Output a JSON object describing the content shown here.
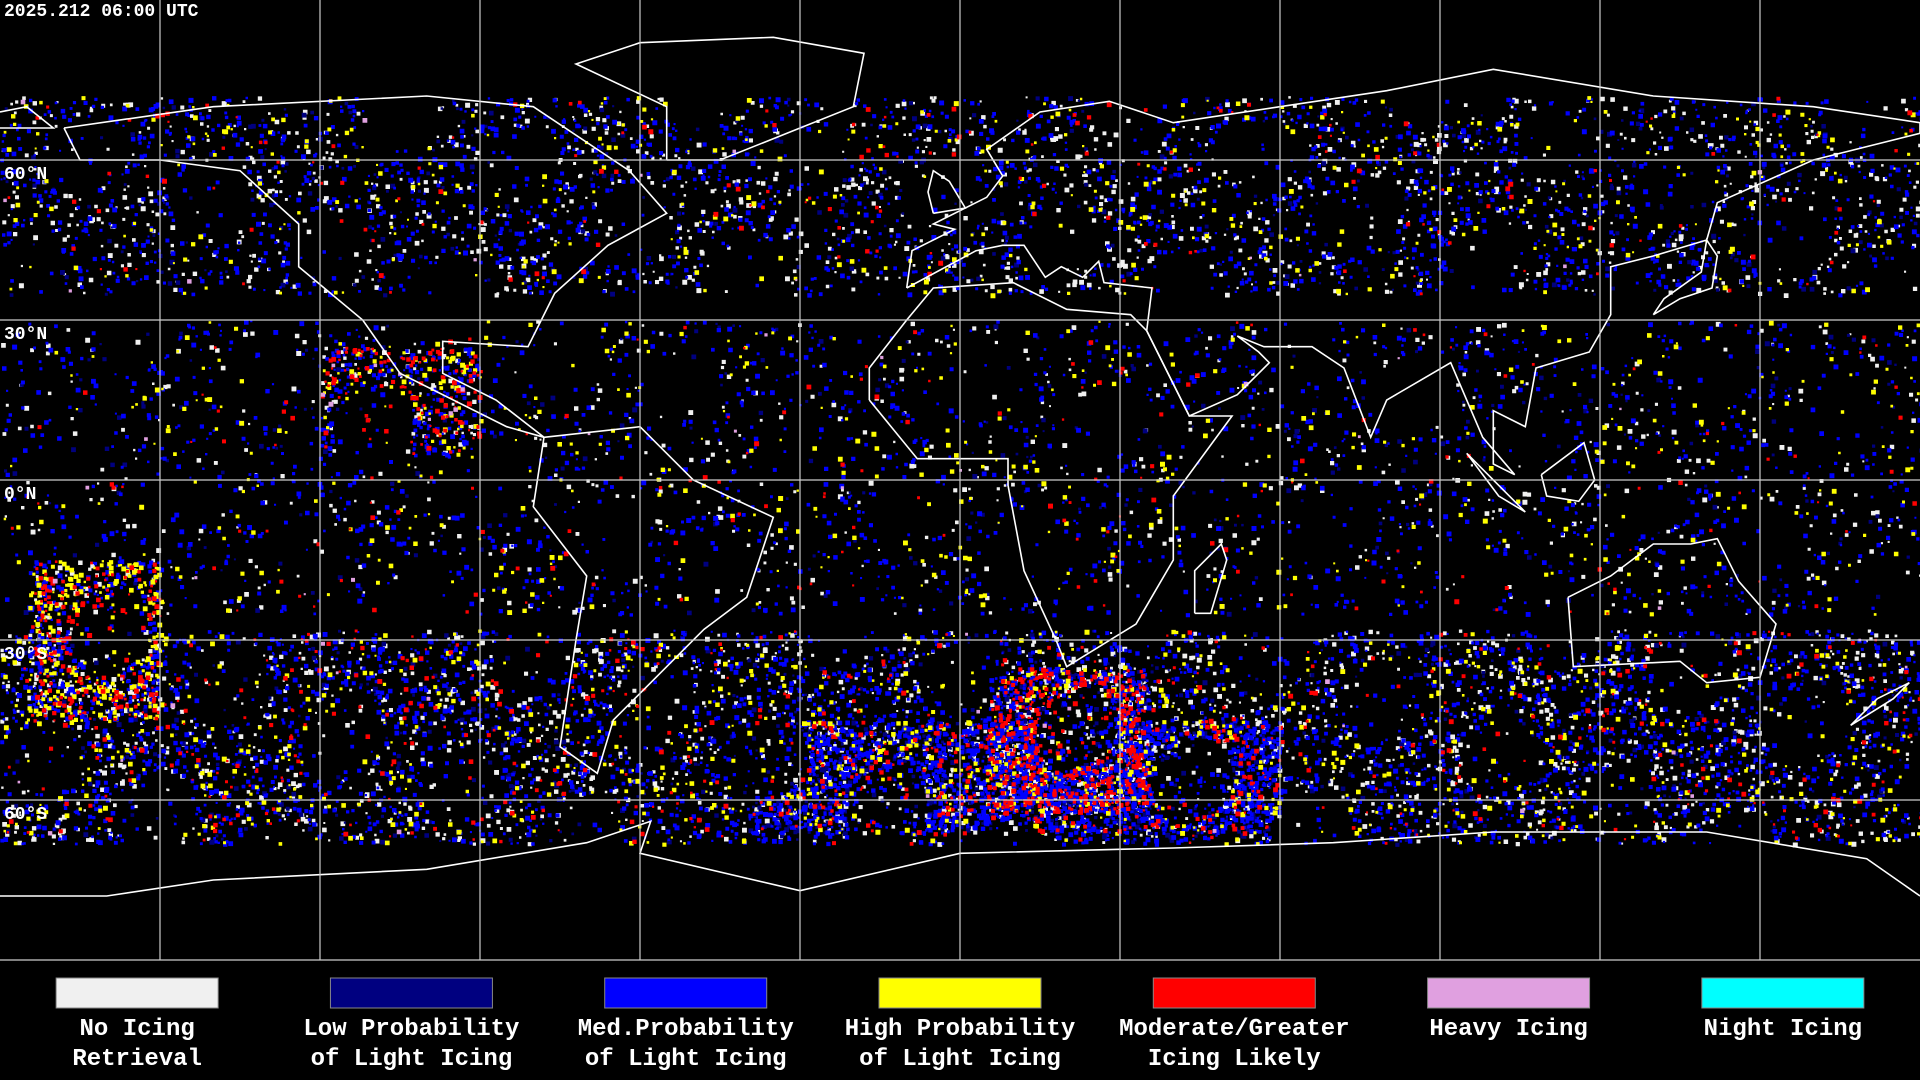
{
  "header": {
    "timestamp": "2025.212 06:00 UTC"
  },
  "map": {
    "latitude_labels": [
      "60°N",
      "30°N",
      "0°N",
      "30°S",
      "60°S"
    ]
  },
  "legend": {
    "items": [
      {
        "label": [
          "No Icing",
          "Retrieval"
        ],
        "color": "#f0f0f0"
      },
      {
        "label": [
          "Low Probability",
          "of Light Icing"
        ],
        "color": "#000080"
      },
      {
        "label": [
          "Med.Probability",
          "of Light Icing"
        ],
        "color": "#0000ff"
      },
      {
        "label": [
          "High Probability",
          "of Light Icing"
        ],
        "color": "#ffff00"
      },
      {
        "label": [
          "Moderate/Greater",
          "Icing Likely"
        ],
        "color": "#ff0000"
      },
      {
        "label": [
          "Heavy Icing"
        ],
        "color": "#e0a0e0"
      },
      {
        "label": [
          "Night Icing"
        ],
        "color": "#00ffff"
      }
    ]
  }
}
